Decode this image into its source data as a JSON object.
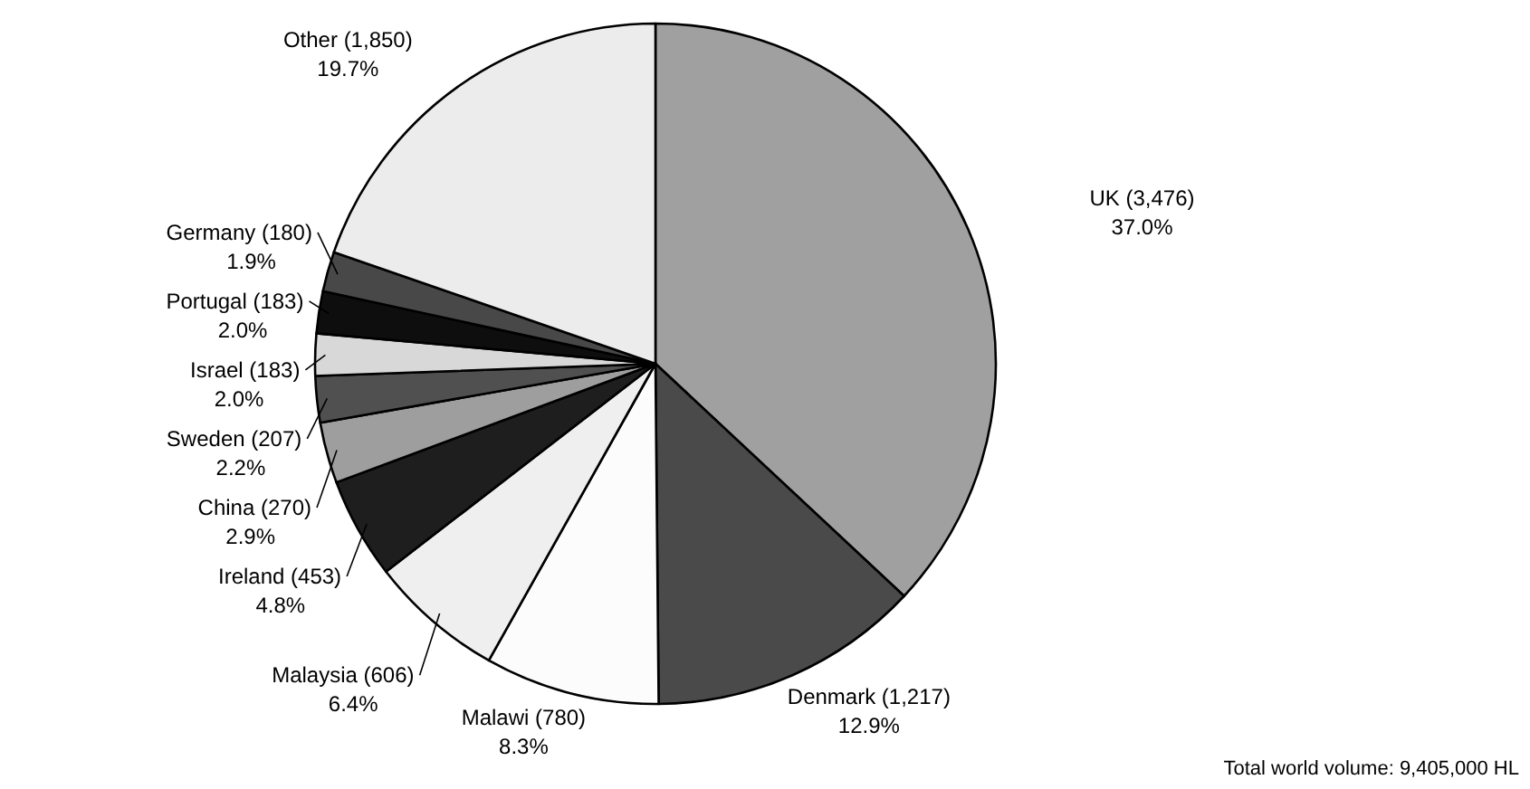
{
  "chart_data": {
    "type": "pie",
    "categories": [
      "UK (3,476)",
      "Denmark (1,217)",
      "Malawi (780)",
      "Malaysia (606)",
      "Ireland (453)",
      "China (270)",
      "Sweden (207)",
      "Israel (183)",
      "Portugal (183)",
      "Germany (180)",
      "Other (1,850)"
    ],
    "values": [
      37.0,
      12.9,
      8.3,
      6.4,
      4.8,
      2.9,
      2.2,
      2.0,
      2.0,
      1.9,
      19.7
    ],
    "value_labels": [
      "37.0%",
      "12.9%",
      "8.3%",
      "6.4%",
      "4.8%",
      "2.9%",
      "2.2%",
      "2.0%",
      "2.0%",
      "1.9%",
      "19.7%"
    ],
    "colors": [
      "#a0a0a0",
      "#4a4a4a",
      "#fcfcfc",
      "#efefef",
      "#1e1e1e",
      "#9e9e9e",
      "#505050",
      "#d8d8d8",
      "#0e0e0e",
      "#484848",
      "#ececec"
    ],
    "annotations": [
      "Total world volume: 9,405,000 HL"
    ]
  }
}
